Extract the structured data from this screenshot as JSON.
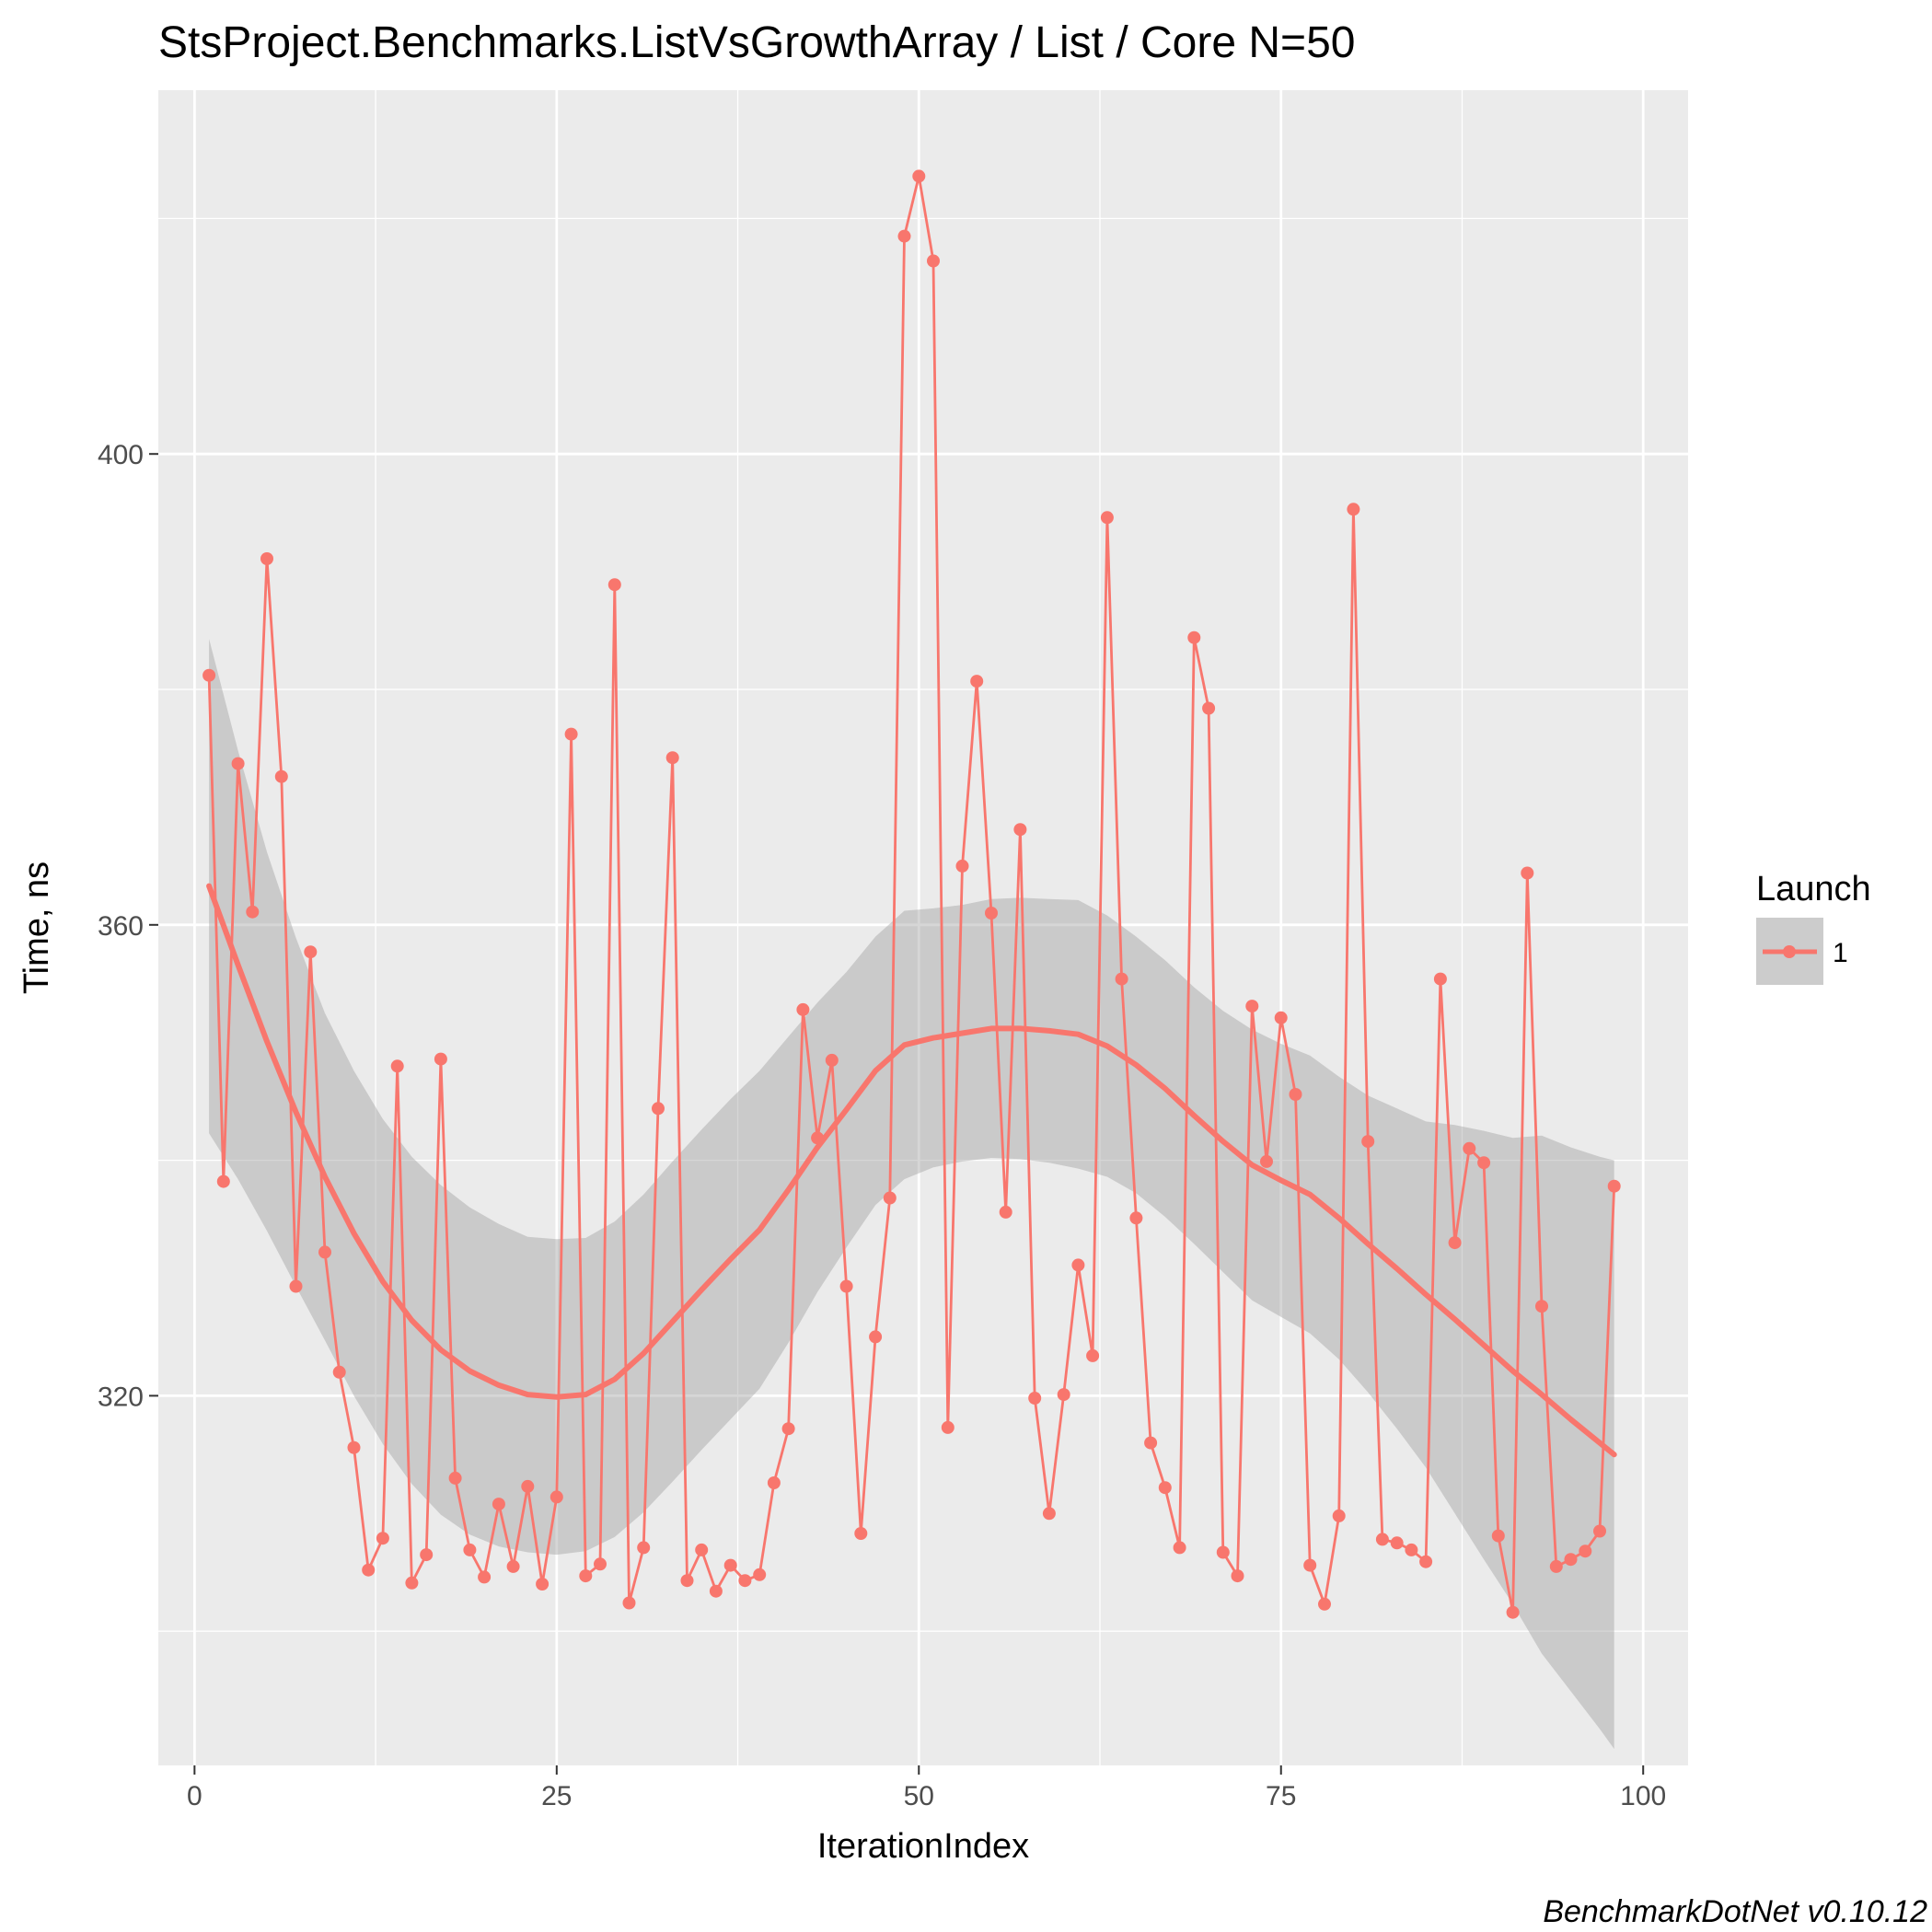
{
  "chart_data": {
    "type": "line",
    "title": "StsProject.Benchmarks.ListVsGrowthArray / List / Core N=50",
    "xlabel": "IterationIndex",
    "ylabel": "Time, ns",
    "caption": "BenchmarkDotNet v0.10.12",
    "xlim": [
      -2.5,
      103.1
    ],
    "ylim": [
      288.6,
      430.9
    ],
    "x_ticks": [
      0,
      25,
      50,
      75,
      100
    ],
    "y_ticks": [
      320,
      360,
      400
    ],
    "grid": true,
    "legend": {
      "title": "Launch",
      "entries": [
        "1"
      ],
      "position": "right"
    },
    "colors": {
      "series": "#F8766D",
      "smooth_band": "#999999",
      "panel": "#EBEBEB",
      "grid": "#FFFFFF"
    },
    "series": [
      {
        "name": "1",
        "x": [
          1,
          2,
          3,
          4,
          5,
          6,
          7,
          8,
          9,
          10,
          11,
          12,
          13,
          14,
          15,
          16,
          17,
          18,
          19,
          20,
          21,
          22,
          23,
          24,
          25,
          26,
          27,
          28,
          29,
          30,
          31,
          32,
          33,
          34,
          35,
          36,
          37,
          38,
          39,
          40,
          41,
          42,
          43,
          44,
          45,
          46,
          47,
          48,
          49,
          50,
          51,
          52,
          53,
          54,
          55,
          56,
          57,
          58,
          59,
          60,
          61,
          62,
          63,
          64,
          65,
          66,
          67,
          68,
          69,
          70,
          71,
          72,
          73,
          74,
          75,
          76,
          77,
          78,
          79,
          80,
          81,
          82,
          83,
          84,
          85,
          86,
          87,
          88,
          89,
          90,
          91,
          92,
          93,
          94,
          95,
          96,
          97,
          98
        ],
        "y": [
          381.2,
          338.2,
          373.7,
          361.1,
          391.1,
          372.6,
          329.3,
          357.7,
          332.2,
          322.0,
          315.6,
          305.2,
          307.9,
          348.0,
          304.1,
          306.5,
          348.6,
          313.0,
          306.9,
          304.6,
          310.8,
          305.5,
          312.3,
          304.0,
          311.4,
          376.2,
          304.7,
          305.7,
          388.9,
          302.4,
          307.1,
          344.4,
          374.2,
          304.3,
          306.9,
          303.4,
          305.6,
          304.3,
          304.8,
          312.6,
          317.2,
          352.8,
          341.9,
          348.5,
          329.3,
          308.3,
          325.0,
          336.8,
          418.5,
          423.6,
          416.4,
          317.3,
          365.0,
          380.7,
          361.0,
          335.6,
          368.1,
          319.8,
          310.0,
          320.1,
          331.1,
          323.4,
          394.6,
          355.4,
          335.1,
          316.0,
          312.2,
          307.1,
          384.4,
          378.4,
          306.7,
          304.7,
          353.1,
          339.9,
          352.1,
          345.6,
          305.6,
          302.3,
          309.8,
          395.3,
          341.6,
          307.8,
          307.5,
          306.9,
          305.9,
          355.4,
          333.0,
          341.0,
          339.8,
          308.1,
          301.6,
          364.4,
          327.6,
          305.5,
          306.1,
          306.8,
          308.5,
          337.8
        ]
      }
    ],
    "smooth": {
      "x": [
        1,
        3,
        5,
        7,
        9,
        11,
        13,
        15,
        17,
        19,
        21,
        23,
        25,
        27,
        29,
        31,
        33,
        35,
        37,
        39,
        41,
        43,
        45,
        47,
        49,
        51,
        53,
        55,
        57,
        59,
        61,
        63,
        65,
        67,
        69,
        71,
        73,
        75,
        77,
        79,
        81,
        83,
        85,
        87,
        89,
        91,
        93,
        95,
        97,
        98
      ],
      "y": [
        363.3,
        356.6,
        350.1,
        344.1,
        338.6,
        333.8,
        329.7,
        326.4,
        323.9,
        322.1,
        320.9,
        320.1,
        319.9,
        320.1,
        321.4,
        323.6,
        326.3,
        329.0,
        331.6,
        334.1,
        337.5,
        341.1,
        344.3,
        347.6,
        349.8,
        350.4,
        350.8,
        351.2,
        351.2,
        351.0,
        350.7,
        349.7,
        348.1,
        346.1,
        343.8,
        341.6,
        339.6,
        338.3,
        337.1,
        335.1,
        332.9,
        330.8,
        328.6,
        326.5,
        324.3,
        322.1,
        320.1,
        318.0,
        316.0,
        315.0
      ],
      "lower": [
        342.3,
        338.4,
        334.0,
        329.3,
        324.7,
        320.0,
        315.9,
        312.5,
        309.9,
        308.2,
        307.2,
        306.7,
        306.5,
        306.8,
        308.0,
        310.1,
        312.7,
        315.4,
        318.0,
        320.6,
        324.5,
        328.8,
        332.6,
        336.2,
        338.4,
        339.4,
        339.9,
        340.2,
        340.1,
        339.8,
        339.3,
        338.6,
        337.2,
        335.2,
        332.9,
        330.5,
        328.1,
        326.7,
        325.3,
        323.1,
        320.3,
        317.2,
        313.9,
        310.0,
        306.1,
        302.3,
        298.1,
        294.9,
        291.7,
        290.0
      ],
      "upper": [
        384.3,
        374.8,
        366.2,
        358.9,
        352.5,
        347.6,
        343.5,
        340.3,
        337.9,
        336.0,
        334.6,
        333.5,
        333.3,
        333.4,
        334.8,
        337.1,
        339.9,
        342.6,
        345.2,
        347.6,
        350.5,
        353.4,
        356.0,
        359.0,
        361.2,
        361.4,
        361.7,
        362.2,
        362.3,
        362.2,
        362.1,
        360.8,
        359.0,
        357.0,
        354.7,
        352.7,
        351.1,
        349.9,
        348.9,
        347.1,
        345.5,
        344.4,
        343.3,
        343.0,
        342.5,
        341.9,
        342.1,
        341.1,
        340.3,
        340.0
      ]
    }
  }
}
